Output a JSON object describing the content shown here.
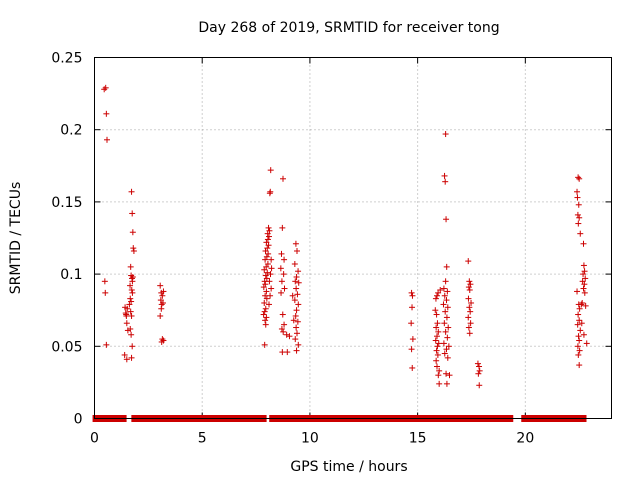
{
  "chart_data": {
    "type": "scatter",
    "title": "Day 268 of 2019, SRMTID for receiver tong",
    "xlabel": "GPS time / hours",
    "ylabel": "SRMTID / TECUs",
    "xlim": [
      0,
      24
    ],
    "ylim": [
      0,
      0.25
    ],
    "xticks": [
      0,
      5,
      10,
      15,
      20
    ],
    "yticks": [
      0,
      0.05,
      0.1,
      0.15,
      0.2,
      0.25
    ],
    "xtick_labels": [
      "0",
      "5",
      "10",
      "15",
      "20"
    ],
    "ytick_labels": [
      "0",
      "0.05",
      "0.1",
      "0.15",
      "0.2",
      "0.25"
    ],
    "grid": true,
    "marker": "+",
    "color": "#cc0000",
    "zero_value_ranges": [
      [
        0.05,
        0.65
      ],
      [
        0.75,
        1.35
      ],
      [
        1.85,
        3.3
      ],
      [
        3.35,
        7.85
      ],
      [
        8.25,
        8.65
      ],
      [
        8.9,
        9.3
      ],
      [
        9.55,
        14.9
      ],
      [
        15.15,
        15.95
      ],
      [
        16.15,
        16.3
      ],
      [
        16.45,
        19.3
      ],
      [
        19.95,
        22.7
      ]
    ],
    "series": [
      {
        "name": "SRMTID",
        "points": [
          [
            0.45,
            0.228
          ],
          [
            0.52,
            0.229
          ],
          [
            0.55,
            0.211
          ],
          [
            0.58,
            0.193
          ],
          [
            0.48,
            0.095
          ],
          [
            0.5,
            0.087
          ],
          [
            0.55,
            0.051
          ],
          [
            1.42,
            0.077
          ],
          [
            1.45,
            0.073
          ],
          [
            1.48,
            0.071
          ],
          [
            1.5,
            0.066
          ],
          [
            1.55,
            0.061
          ],
          [
            1.4,
            0.044
          ],
          [
            1.5,
            0.041
          ],
          [
            1.52,
            0.076
          ],
          [
            1.47,
            0.072
          ],
          [
            1.72,
            0.157
          ],
          [
            1.75,
            0.142
          ],
          [
            1.78,
            0.129
          ],
          [
            1.8,
            0.118
          ],
          [
            1.83,
            0.116
          ],
          [
            1.68,
            0.105
          ],
          [
            1.7,
            0.099
          ],
          [
            1.74,
            0.097
          ],
          [
            1.76,
            0.095
          ],
          [
            1.65,
            0.092
          ],
          [
            1.73,
            0.089
          ],
          [
            1.76,
            0.087
          ],
          [
            1.66,
            0.083
          ],
          [
            1.7,
            0.081
          ],
          [
            1.62,
            0.079
          ],
          [
            1.68,
            0.074
          ],
          [
            1.72,
            0.071
          ],
          [
            1.7,
            0.058
          ],
          [
            1.75,
            0.05
          ],
          [
            1.72,
            0.042
          ],
          [
            1.78,
            0.098
          ],
          [
            1.66,
            0.062
          ],
          [
            3.05,
            0.092
          ],
          [
            3.1,
            0.087
          ],
          [
            3.15,
            0.085
          ],
          [
            3.2,
            0.088
          ],
          [
            3.08,
            0.082
          ],
          [
            3.12,
            0.079
          ],
          [
            3.18,
            0.08
          ],
          [
            3.1,
            0.076
          ],
          [
            3.05,
            0.071
          ],
          [
            3.15,
            0.055
          ],
          [
            3.2,
            0.054
          ],
          [
            3.12,
            0.053
          ],
          [
            7.9,
            0.051
          ],
          [
            7.95,
            0.065
          ],
          [
            7.92,
            0.068
          ],
          [
            7.98,
            0.07
          ],
          [
            7.85,
            0.072
          ],
          [
            7.9,
            0.074
          ],
          [
            7.95,
            0.076
          ],
          [
            7.88,
            0.08
          ],
          [
            8.0,
            0.083
          ],
          [
            7.92,
            0.085
          ],
          [
            7.98,
            0.088
          ],
          [
            7.86,
            0.091
          ],
          [
            7.93,
            0.093
          ],
          [
            7.9,
            0.095
          ],
          [
            8.0,
            0.097
          ],
          [
            7.95,
            0.099
          ],
          [
            8.02,
            0.101
          ],
          [
            7.88,
            0.103
          ],
          [
            7.97,
            0.105
          ],
          [
            8.05,
            0.107
          ],
          [
            7.92,
            0.11
          ],
          [
            8.0,
            0.112
          ],
          [
            8.06,
            0.114
          ],
          [
            7.94,
            0.116
          ],
          [
            8.02,
            0.118
          ],
          [
            8.08,
            0.12
          ],
          [
            7.98,
            0.122
          ],
          [
            8.05,
            0.124
          ],
          [
            8.1,
            0.126
          ],
          [
            8.04,
            0.128
          ],
          [
            8.12,
            0.13
          ],
          [
            8.08,
            0.132
          ],
          [
            8.14,
            0.156
          ],
          [
            8.16,
            0.157
          ],
          [
            8.18,
            0.172
          ],
          [
            8.2,
            0.11
          ],
          [
            8.22,
            0.104
          ],
          [
            8.17,
            0.1
          ],
          [
            8.12,
            0.095
          ],
          [
            8.2,
            0.09
          ],
          [
            8.15,
            0.085
          ],
          [
            8.1,
            0.079
          ],
          [
            8.75,
            0.166
          ],
          [
            8.72,
            0.132
          ],
          [
            8.68,
            0.114
          ],
          [
            8.8,
            0.11
          ],
          [
            8.65,
            0.104
          ],
          [
            8.78,
            0.1
          ],
          [
            8.7,
            0.095
          ],
          [
            8.82,
            0.09
          ],
          [
            8.66,
            0.087
          ],
          [
            8.74,
            0.072
          ],
          [
            8.8,
            0.065
          ],
          [
            8.7,
            0.062
          ],
          [
            8.76,
            0.06
          ],
          [
            8.72,
            0.046
          ],
          [
            8.95,
            0.046
          ],
          [
            9.05,
            0.057
          ],
          [
            8.92,
            0.058
          ],
          [
            9.35,
            0.121
          ],
          [
            9.4,
            0.116
          ],
          [
            9.3,
            0.107
          ],
          [
            9.45,
            0.102
          ],
          [
            9.38,
            0.098
          ],
          [
            9.32,
            0.095
          ],
          [
            9.48,
            0.094
          ],
          [
            9.36,
            0.09
          ],
          [
            9.42,
            0.086
          ],
          [
            9.3,
            0.082
          ],
          [
            9.46,
            0.079
          ],
          [
            9.38,
            0.075
          ],
          [
            9.34,
            0.071
          ],
          [
            9.44,
            0.067
          ],
          [
            9.36,
            0.063
          ],
          [
            9.4,
            0.059
          ],
          [
            9.32,
            0.055
          ],
          [
            9.46,
            0.051
          ],
          [
            9.38,
            0.047
          ],
          [
            9.2,
            0.085
          ],
          [
            9.25,
            0.068
          ],
          [
            14.72,
            0.087
          ],
          [
            14.76,
            0.085
          ],
          [
            14.74,
            0.077
          ],
          [
            14.7,
            0.066
          ],
          [
            14.78,
            0.055
          ],
          [
            14.72,
            0.048
          ],
          [
            14.75,
            0.035
          ],
          [
            15.85,
            0.083
          ],
          [
            15.9,
            0.085
          ],
          [
            15.95,
            0.087
          ],
          [
            15.82,
            0.075
          ],
          [
            15.88,
            0.072
          ],
          [
            15.92,
            0.066
          ],
          [
            15.86,
            0.063
          ],
          [
            15.96,
            0.06
          ],
          [
            15.9,
            0.057
          ],
          [
            15.84,
            0.054
          ],
          [
            15.98,
            0.052
          ],
          [
            15.92,
            0.05
          ],
          [
            15.88,
            0.047
          ],
          [
            15.94,
            0.044
          ],
          [
            15.86,
            0.04
          ],
          [
            15.9,
            0.036
          ],
          [
            16.0,
            0.033
          ],
          [
            15.96,
            0.03
          ],
          [
            16.05,
            0.089
          ],
          [
            16.0,
            0.024
          ],
          [
            16.3,
            0.197
          ],
          [
            16.25,
            0.168
          ],
          [
            16.28,
            0.164
          ],
          [
            16.32,
            0.138
          ],
          [
            16.35,
            0.105
          ],
          [
            16.3,
            0.095
          ],
          [
            16.22,
            0.09
          ],
          [
            16.38,
            0.088
          ],
          [
            16.26,
            0.085
          ],
          [
            16.34,
            0.082
          ],
          [
            16.2,
            0.079
          ],
          [
            16.4,
            0.077
          ],
          [
            16.28,
            0.074
          ],
          [
            16.36,
            0.07
          ],
          [
            16.24,
            0.066
          ],
          [
            16.42,
            0.063
          ],
          [
            16.3,
            0.06
          ],
          [
            16.38,
            0.056
          ],
          [
            16.22,
            0.052
          ],
          [
            16.34,
            0.048
          ],
          [
            16.26,
            0.045
          ],
          [
            16.4,
            0.042
          ],
          [
            16.32,
            0.031
          ],
          [
            16.48,
            0.03
          ],
          [
            16.36,
            0.024
          ],
          [
            16.45,
            0.05
          ],
          [
            17.35,
            0.109
          ],
          [
            17.4,
            0.095
          ],
          [
            17.45,
            0.093
          ],
          [
            17.38,
            0.091
          ],
          [
            17.42,
            0.089
          ],
          [
            17.36,
            0.083
          ],
          [
            17.48,
            0.08
          ],
          [
            17.4,
            0.077
          ],
          [
            17.44,
            0.074
          ],
          [
            17.35,
            0.07
          ],
          [
            17.46,
            0.066
          ],
          [
            17.38,
            0.063
          ],
          [
            17.42,
            0.059
          ],
          [
            17.8,
            0.038
          ],
          [
            17.85,
            0.036
          ],
          [
            17.88,
            0.033
          ],
          [
            17.82,
            0.031
          ],
          [
            17.86,
            0.023
          ],
          [
            22.45,
            0.167
          ],
          [
            22.5,
            0.166
          ],
          [
            22.4,
            0.157
          ],
          [
            22.42,
            0.153
          ],
          [
            22.48,
            0.148
          ],
          [
            22.44,
            0.141
          ],
          [
            22.5,
            0.139
          ],
          [
            22.46,
            0.135
          ],
          [
            22.55,
            0.128
          ],
          [
            22.4,
            0.088
          ],
          [
            22.48,
            0.079
          ],
          [
            22.52,
            0.076
          ],
          [
            22.45,
            0.072
          ],
          [
            22.5,
            0.068
          ],
          [
            22.43,
            0.065
          ],
          [
            22.55,
            0.061
          ],
          [
            22.47,
            0.057
          ],
          [
            22.5,
            0.054
          ],
          [
            22.44,
            0.05
          ],
          [
            22.52,
            0.047
          ],
          [
            22.46,
            0.044
          ],
          [
            22.5,
            0.037
          ],
          [
            22.7,
            0.121
          ],
          [
            22.72,
            0.106
          ],
          [
            22.75,
            0.102
          ],
          [
            22.68,
            0.1
          ],
          [
            22.78,
            0.097
          ],
          [
            22.66,
            0.095
          ],
          [
            22.74,
            0.093
          ],
          [
            22.7,
            0.09
          ],
          [
            22.76,
            0.087
          ],
          [
            22.64,
            0.08
          ],
          [
            22.8,
            0.078
          ],
          [
            22.72,
            0.058
          ],
          [
            22.85,
            0.052
          ],
          [
            22.6,
            0.079
          ],
          [
            22.62,
            0.066
          ]
        ]
      }
    ]
  }
}
